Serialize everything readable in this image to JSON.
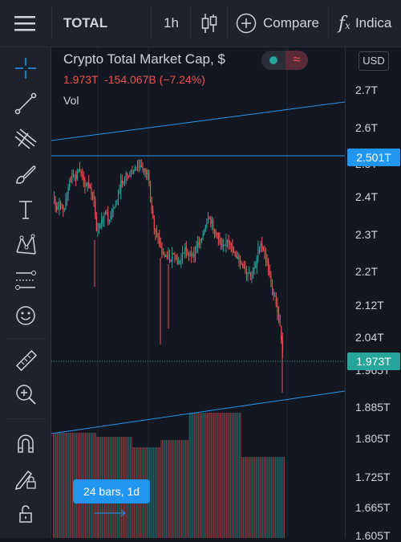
{
  "toolbar": {
    "symbol": "TOTAL",
    "interval": "1h",
    "compare_label": "Compare",
    "indicators_label": "Indica"
  },
  "legend": {
    "title": "Crypto Total Market Cap, $",
    "values": "1.973T  -154.067B (−7.24%)",
    "volume_label": "Vol"
  },
  "price_axis": {
    "currency": "USD",
    "labels": [
      "2.7T",
      "2.6T",
      "2.5T",
      "2.4T",
      "2.3T",
      "2.2T",
      "2.12T",
      "2.04T",
      "1.965T",
      "1.885T",
      "1.805T",
      "1.725T",
      "1.665T",
      "1.605T"
    ],
    "horizontal_line_tag": "2.501T",
    "last_price_tag": "1.973T"
  },
  "date_range_badge": "24 bars, 1d",
  "colors": {
    "background": "#131722",
    "up": "#26a69a",
    "down": "#ef5350",
    "accent": "#2196f3",
    "last_price": "#26a69a"
  },
  "left_tools": [
    "crosshair-icon",
    "trend-line-icon",
    "pitchfork-icon",
    "brush-icon",
    "text-icon",
    "pattern-icon",
    "forecast-icon",
    "emoji-icon",
    "ruler-icon",
    "zoom-in-icon",
    "magnet-icon",
    "lock-pencil-icon",
    "unlock-icon"
  ]
}
